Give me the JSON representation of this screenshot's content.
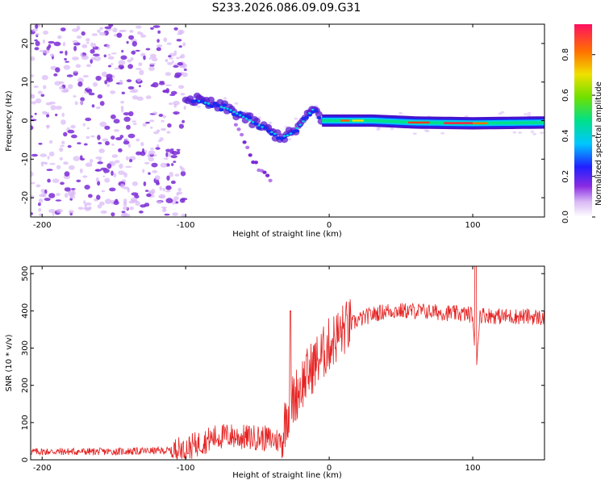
{
  "title": "S233.2026.086.09.09.G31",
  "colors": {
    "snr_line": "#e52222",
    "spectrogram_scatter": "#7b2bd6",
    "axis": "#000000"
  },
  "chart_data": [
    {
      "type": "heatmap",
      "name": "spectrogram",
      "xlabel": "Height of straight line (km)",
      "ylabel": "Frequency (Hz)",
      "xlim": [
        -208,
        150
      ],
      "ylim": [
        -25,
        25
      ],
      "xticks": [
        -200,
        -100,
        0,
        100
      ],
      "yticks": [
        -20,
        -10,
        0,
        10,
        20
      ],
      "ridge": {
        "x": [
          -100,
          -90,
          -80,
          -70,
          -60,
          -50,
          -40,
          -35,
          -30,
          -25,
          -20,
          -15,
          -12,
          -8,
          -5,
          0,
          10,
          30,
          60,
          100,
          150
        ],
        "y": [
          6,
          5,
          4,
          3,
          1,
          -1,
          -3,
          -4,
          -4,
          -3,
          -1,
          1,
          3,
          2,
          0,
          0,
          0,
          0,
          -0.5,
          -0.7,
          -0.5
        ]
      },
      "secondary_ridge": {
        "x": [
          -65,
          -60,
          -55,
          -50,
          -45,
          -40
        ],
        "y": [
          -1,
          -5,
          -9,
          -12,
          -14,
          -16
        ]
      },
      "colorbar": {
        "label": "Normalized spectral amplitude",
        "range": [
          0.0,
          0.95
        ],
        "ticks": [
          0.0,
          0.2,
          0.4,
          0.6,
          0.8
        ]
      }
    },
    {
      "type": "line",
      "name": "snr",
      "xlabel": "Height of straight line (km)",
      "ylabel": "SNR (10 * v/v)",
      "xlim": [
        -208,
        150
      ],
      "ylim": [
        0,
        520
      ],
      "xticks": [
        -200,
        -100,
        0,
        100
      ],
      "yticks": [
        0,
        100,
        200,
        300,
        400,
        500
      ],
      "series": [
        {
          "name": "SNR",
          "x": [
            -208,
            -150,
            -110,
            -100,
            -90,
            -80,
            -70,
            -60,
            -50,
            -40,
            -33,
            -30,
            -25,
            -20,
            -15,
            -10,
            -5,
            0,
            10,
            20,
            30,
            40,
            60,
            80,
            100,
            102,
            105,
            120,
            140,
            150
          ],
          "y": [
            22,
            22,
            25,
            30,
            45,
            60,
            65,
            60,
            60,
            55,
            50,
            120,
            160,
            200,
            230,
            260,
            280,
            310,
            350,
            375,
            390,
            400,
            400,
            395,
            390,
            230,
            390,
            385,
            385,
            380
          ]
        }
      ]
    }
  ]
}
